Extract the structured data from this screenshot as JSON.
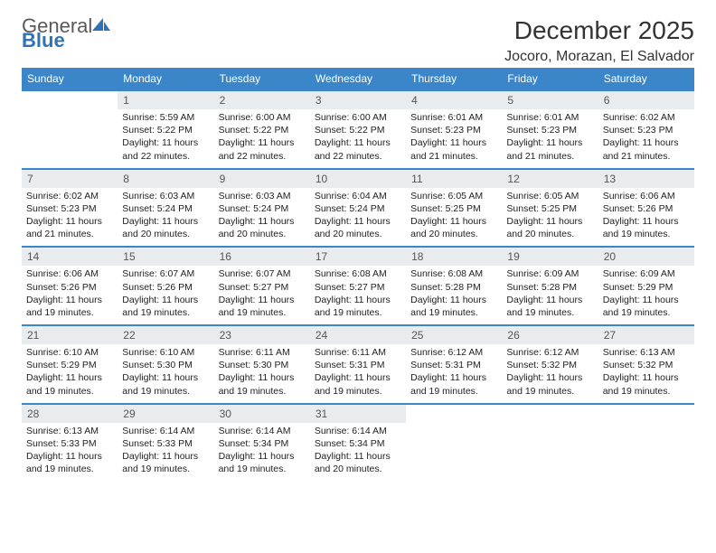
{
  "logo": {
    "general": "General",
    "blue": "Blue"
  },
  "title": "December 2025",
  "subtitle": "Jocoro, Morazan, El Salvador",
  "colors": {
    "header_bg": "#3a86c8",
    "header_text": "#ffffff",
    "daybar_bg": "#e9ecef",
    "daybar_text": "#555555",
    "row_border": "#3a86c8",
    "logo_gray": "#5a5a5a",
    "logo_blue": "#2f72b8"
  },
  "weekdays": [
    "Sunday",
    "Monday",
    "Tuesday",
    "Wednesday",
    "Thursday",
    "Friday",
    "Saturday"
  ],
  "weeks": [
    [
      null,
      {
        "n": "1",
        "sr": "Sunrise: 5:59 AM",
        "ss": "Sunset: 5:22 PM",
        "d1": "Daylight: 11 hours",
        "d2": "and 22 minutes."
      },
      {
        "n": "2",
        "sr": "Sunrise: 6:00 AM",
        "ss": "Sunset: 5:22 PM",
        "d1": "Daylight: 11 hours",
        "d2": "and 22 minutes."
      },
      {
        "n": "3",
        "sr": "Sunrise: 6:00 AM",
        "ss": "Sunset: 5:22 PM",
        "d1": "Daylight: 11 hours",
        "d2": "and 22 minutes."
      },
      {
        "n": "4",
        "sr": "Sunrise: 6:01 AM",
        "ss": "Sunset: 5:23 PM",
        "d1": "Daylight: 11 hours",
        "d2": "and 21 minutes."
      },
      {
        "n": "5",
        "sr": "Sunrise: 6:01 AM",
        "ss": "Sunset: 5:23 PM",
        "d1": "Daylight: 11 hours",
        "d2": "and 21 minutes."
      },
      {
        "n": "6",
        "sr": "Sunrise: 6:02 AM",
        "ss": "Sunset: 5:23 PM",
        "d1": "Daylight: 11 hours",
        "d2": "and 21 minutes."
      }
    ],
    [
      {
        "n": "7",
        "sr": "Sunrise: 6:02 AM",
        "ss": "Sunset: 5:23 PM",
        "d1": "Daylight: 11 hours",
        "d2": "and 21 minutes."
      },
      {
        "n": "8",
        "sr": "Sunrise: 6:03 AM",
        "ss": "Sunset: 5:24 PM",
        "d1": "Daylight: 11 hours",
        "d2": "and 20 minutes."
      },
      {
        "n": "9",
        "sr": "Sunrise: 6:03 AM",
        "ss": "Sunset: 5:24 PM",
        "d1": "Daylight: 11 hours",
        "d2": "and 20 minutes."
      },
      {
        "n": "10",
        "sr": "Sunrise: 6:04 AM",
        "ss": "Sunset: 5:24 PM",
        "d1": "Daylight: 11 hours",
        "d2": "and 20 minutes."
      },
      {
        "n": "11",
        "sr": "Sunrise: 6:05 AM",
        "ss": "Sunset: 5:25 PM",
        "d1": "Daylight: 11 hours",
        "d2": "and 20 minutes."
      },
      {
        "n": "12",
        "sr": "Sunrise: 6:05 AM",
        "ss": "Sunset: 5:25 PM",
        "d1": "Daylight: 11 hours",
        "d2": "and 20 minutes."
      },
      {
        "n": "13",
        "sr": "Sunrise: 6:06 AM",
        "ss": "Sunset: 5:26 PM",
        "d1": "Daylight: 11 hours",
        "d2": "and 19 minutes."
      }
    ],
    [
      {
        "n": "14",
        "sr": "Sunrise: 6:06 AM",
        "ss": "Sunset: 5:26 PM",
        "d1": "Daylight: 11 hours",
        "d2": "and 19 minutes."
      },
      {
        "n": "15",
        "sr": "Sunrise: 6:07 AM",
        "ss": "Sunset: 5:26 PM",
        "d1": "Daylight: 11 hours",
        "d2": "and 19 minutes."
      },
      {
        "n": "16",
        "sr": "Sunrise: 6:07 AM",
        "ss": "Sunset: 5:27 PM",
        "d1": "Daylight: 11 hours",
        "d2": "and 19 minutes."
      },
      {
        "n": "17",
        "sr": "Sunrise: 6:08 AM",
        "ss": "Sunset: 5:27 PM",
        "d1": "Daylight: 11 hours",
        "d2": "and 19 minutes."
      },
      {
        "n": "18",
        "sr": "Sunrise: 6:08 AM",
        "ss": "Sunset: 5:28 PM",
        "d1": "Daylight: 11 hours",
        "d2": "and 19 minutes."
      },
      {
        "n": "19",
        "sr": "Sunrise: 6:09 AM",
        "ss": "Sunset: 5:28 PM",
        "d1": "Daylight: 11 hours",
        "d2": "and 19 minutes."
      },
      {
        "n": "20",
        "sr": "Sunrise: 6:09 AM",
        "ss": "Sunset: 5:29 PM",
        "d1": "Daylight: 11 hours",
        "d2": "and 19 minutes."
      }
    ],
    [
      {
        "n": "21",
        "sr": "Sunrise: 6:10 AM",
        "ss": "Sunset: 5:29 PM",
        "d1": "Daylight: 11 hours",
        "d2": "and 19 minutes."
      },
      {
        "n": "22",
        "sr": "Sunrise: 6:10 AM",
        "ss": "Sunset: 5:30 PM",
        "d1": "Daylight: 11 hours",
        "d2": "and 19 minutes."
      },
      {
        "n": "23",
        "sr": "Sunrise: 6:11 AM",
        "ss": "Sunset: 5:30 PM",
        "d1": "Daylight: 11 hours",
        "d2": "and 19 minutes."
      },
      {
        "n": "24",
        "sr": "Sunrise: 6:11 AM",
        "ss": "Sunset: 5:31 PM",
        "d1": "Daylight: 11 hours",
        "d2": "and 19 minutes."
      },
      {
        "n": "25",
        "sr": "Sunrise: 6:12 AM",
        "ss": "Sunset: 5:31 PM",
        "d1": "Daylight: 11 hours",
        "d2": "and 19 minutes."
      },
      {
        "n": "26",
        "sr": "Sunrise: 6:12 AM",
        "ss": "Sunset: 5:32 PM",
        "d1": "Daylight: 11 hours",
        "d2": "and 19 minutes."
      },
      {
        "n": "27",
        "sr": "Sunrise: 6:13 AM",
        "ss": "Sunset: 5:32 PM",
        "d1": "Daylight: 11 hours",
        "d2": "and 19 minutes."
      }
    ],
    [
      {
        "n": "28",
        "sr": "Sunrise: 6:13 AM",
        "ss": "Sunset: 5:33 PM",
        "d1": "Daylight: 11 hours",
        "d2": "and 19 minutes."
      },
      {
        "n": "29",
        "sr": "Sunrise: 6:14 AM",
        "ss": "Sunset: 5:33 PM",
        "d1": "Daylight: 11 hours",
        "d2": "and 19 minutes."
      },
      {
        "n": "30",
        "sr": "Sunrise: 6:14 AM",
        "ss": "Sunset: 5:34 PM",
        "d1": "Daylight: 11 hours",
        "d2": "and 19 minutes."
      },
      {
        "n": "31",
        "sr": "Sunrise: 6:14 AM",
        "ss": "Sunset: 5:34 PM",
        "d1": "Daylight: 11 hours",
        "d2": "and 20 minutes."
      },
      null,
      null,
      null
    ]
  ]
}
